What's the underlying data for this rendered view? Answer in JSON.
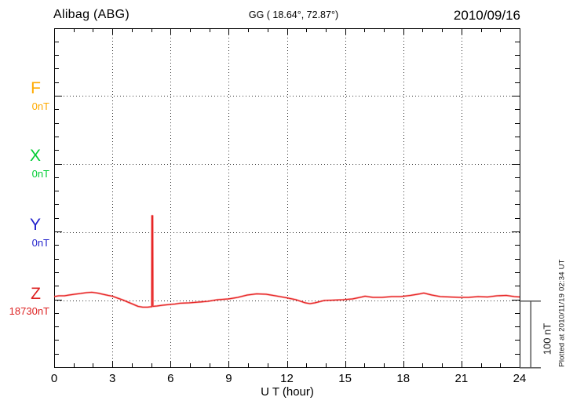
{
  "header": {
    "station": "Alibag (ABG)",
    "coords": "GG ( 18.64°,  72.87°)",
    "date": "2010/09/16"
  },
  "components": [
    {
      "letter": "F",
      "value": "0nT",
      "color": "#ffaa00"
    },
    {
      "letter": "X",
      "value": "0nT",
      "color": "#00cc33"
    },
    {
      "letter": "Y",
      "value": "0nT",
      "color": "#2222cc"
    },
    {
      "letter": "Z",
      "value": "18730nT",
      "color": "#dd2222"
    }
  ],
  "x_axis": {
    "label": "U T (hour)",
    "ticks": [
      0,
      3,
      6,
      9,
      12,
      15,
      18,
      21,
      24
    ]
  },
  "scale_bar": {
    "label": "100 nT"
  },
  "footer_note": "Plotted at 2010/11/19 02:34 UT",
  "chart_data": {
    "type": "line",
    "title": "Alibag (ABG) magnetogram",
    "station_code": "ABG",
    "geographic_coords": "GG ( 18.64°,  72.87°)",
    "date": "2010/09/16",
    "xlabel": "U T (hour)",
    "xlim": [
      0,
      24
    ],
    "x_major_ticks": [
      0,
      3,
      6,
      9,
      12,
      15,
      18,
      21,
      24
    ],
    "x_minor_step_hours": 1,
    "grid": "dotted horizontal lines at component baselines, dotted vertical lines every 3 hours",
    "nT_per_division": 100,
    "scale_bar_nT": 100,
    "plotted_note": "Plotted at 2010/11/19 02:34 UT",
    "components": [
      {
        "name": "F",
        "baseline_label": "0nT",
        "color": "#ffaa00",
        "data_plotted": false
      },
      {
        "name": "X",
        "baseline_label": "0nT",
        "color": "#00cc33",
        "data_plotted": false
      },
      {
        "name": "Y",
        "baseline_label": "0nT",
        "color": "#2222cc",
        "data_plotted": false
      },
      {
        "name": "Z",
        "baseline_label": "18730nT",
        "baseline_nT": 18730,
        "color": "#dd2222",
        "data_plotted": true,
        "spike": {
          "hour": 5.05,
          "peak_offset_nT": 127
        },
        "points_hour_offsetNT": [
          [
            0,
            5.9
          ],
          [
            0.24,
            7.1
          ],
          [
            0.53,
            7.1
          ],
          [
            0.77,
            8.2
          ],
          [
            1.05,
            9.4
          ],
          [
            1.38,
            10.6
          ],
          [
            1.66,
            11.8
          ],
          [
            1.94,
            12.4
          ],
          [
            2.23,
            11.2
          ],
          [
            2.51,
            9.4
          ],
          [
            2.79,
            7.6
          ],
          [
            3,
            6.5
          ],
          [
            3.28,
            3.5
          ],
          [
            3.56,
            0.6
          ],
          [
            3.85,
            -2.9
          ],
          [
            4.09,
            -5.9
          ],
          [
            4.33,
            -8.8
          ],
          [
            4.57,
            -10
          ],
          [
            4.82,
            -10
          ],
          [
            4.98,
            -9.4
          ],
          [
            5.03,
            -9.4
          ],
          [
            5.04,
            127.1
          ],
          [
            5.08,
            127.1
          ],
          [
            5.09,
            -8.8
          ],
          [
            5.3,
            -8.2
          ],
          [
            5.59,
            -7.1
          ],
          [
            5.99,
            -5.9
          ],
          [
            6.23,
            -5.3
          ],
          [
            6.48,
            -4.1
          ],
          [
            6.96,
            -3.5
          ],
          [
            7.45,
            -2.4
          ],
          [
            7.93,
            -1.2
          ],
          [
            8.42,
            1.2
          ],
          [
            8.99,
            2.4
          ],
          [
            9.47,
            4.7
          ],
          [
            9.96,
            8.2
          ],
          [
            10.44,
            10
          ],
          [
            10.93,
            9.4
          ],
          [
            11.41,
            7.1
          ],
          [
            11.98,
            4.1
          ],
          [
            12.47,
            1.2
          ],
          [
            12.95,
            -3.5
          ],
          [
            13.19,
            -4.7
          ],
          [
            13.44,
            -3.5
          ],
          [
            13.92,
            0
          ],
          [
            14.41,
            0.6
          ],
          [
            14.89,
            1.2
          ],
          [
            15.38,
            2.4
          ],
          [
            15.86,
            5.3
          ],
          [
            16.03,
            6.5
          ],
          [
            16.43,
            4.7
          ],
          [
            16.92,
            4.7
          ],
          [
            17.4,
            5.9
          ],
          [
            17.89,
            5.9
          ],
          [
            18.37,
            7.6
          ],
          [
            18.86,
            10
          ],
          [
            19.06,
            11.2
          ],
          [
            19.47,
            8.2
          ],
          [
            19.91,
            5.9
          ],
          [
            20.4,
            5.3
          ],
          [
            20.88,
            4.7
          ],
          [
            21.37,
            4.7
          ],
          [
            21.86,
            5.9
          ],
          [
            22.34,
            5.3
          ],
          [
            22.83,
            7.1
          ],
          [
            23.31,
            7.6
          ],
          [
            23.72,
            5.9
          ],
          [
            24,
            5.3
          ]
        ]
      }
    ]
  }
}
